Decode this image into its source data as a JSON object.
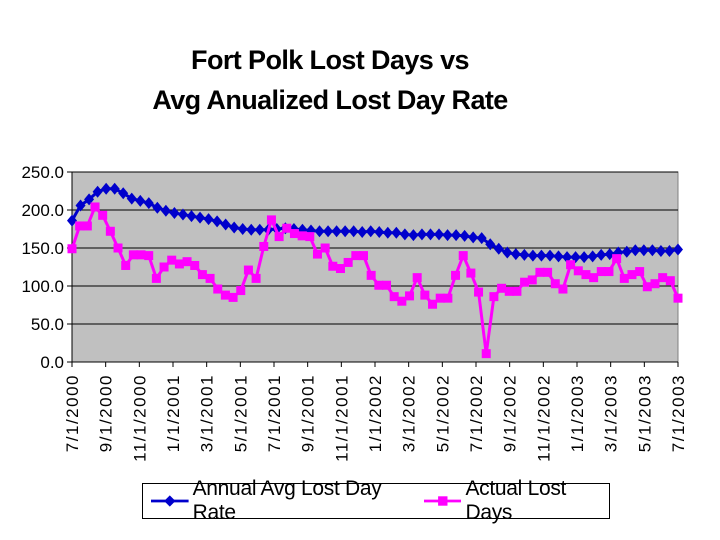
{
  "chart_data": {
    "type": "line",
    "title_line1": "Fort Polk Lost Days vs",
    "title_line2": "Avg Anualized Lost Day Rate",
    "ylim": [
      0,
      250
    ],
    "yticks": [
      "0.0",
      "50.0",
      "100.0",
      "150.0",
      "200.0",
      "250.0"
    ],
    "xtick_labels": [
      "7/1/2000",
      "9/1/2000",
      "11/1/2000",
      "1/1/2001",
      "3/1/2001",
      "5/1/2001",
      "7/1/2001",
      "9/1/2001",
      "11/1/2001",
      "1/1/2002",
      "3/1/2002",
      "5/1/2002",
      "7/1/2002",
      "9/1/2002",
      "11/1/2002",
      "1/1/2003",
      "3/1/2003",
      "5/1/2003",
      "7/1/2003"
    ],
    "series": [
      {
        "name": "Annual Avg Lost Day Rate",
        "color": "#0000CC",
        "marker": "diamond",
        "values": [
          186,
          206,
          214,
          224,
          228,
          228,
          222,
          215,
          212,
          209,
          203,
          199,
          196,
          194,
          192,
          190,
          188,
          185,
          181,
          177,
          175,
          174,
          174,
          174,
          175,
          176,
          175,
          174,
          173,
          172,
          172,
          172,
          172,
          172,
          171,
          172,
          171,
          170,
          170,
          168,
          167,
          168,
          168,
          168,
          167,
          167,
          166,
          164,
          163,
          155,
          149,
          144,
          142,
          141,
          140,
          140,
          140,
          139,
          138,
          138,
          138,
          139,
          141,
          142,
          144,
          145,
          147,
          147,
          147,
          146,
          146,
          148
        ]
      },
      {
        "name": "Actual Lost Days",
        "color": "#FF00FF",
        "marker": "square",
        "values": [
          149,
          179,
          179,
          204,
          193,
          172,
          150,
          127,
          141,
          141,
          140,
          110,
          125,
          134,
          129,
          132,
          127,
          115,
          110,
          96,
          88,
          85,
          94,
          121,
          110,
          152,
          187,
          165,
          176,
          169,
          166,
          165,
          142,
          150,
          126,
          123,
          131,
          140,
          140,
          114,
          101,
          101,
          86,
          80,
          87,
          111,
          88,
          76,
          84,
          84,
          114,
          140,
          117,
          92,
          11,
          86,
          97,
          93,
          93,
          105,
          108,
          118,
          118,
          103,
          96,
          128,
          120,
          115,
          111,
          119,
          119,
          136,
          110,
          115,
          119,
          99,
          103,
          111,
          107,
          84
        ]
      }
    ],
    "legend_position": "bottom",
    "grid": true
  }
}
